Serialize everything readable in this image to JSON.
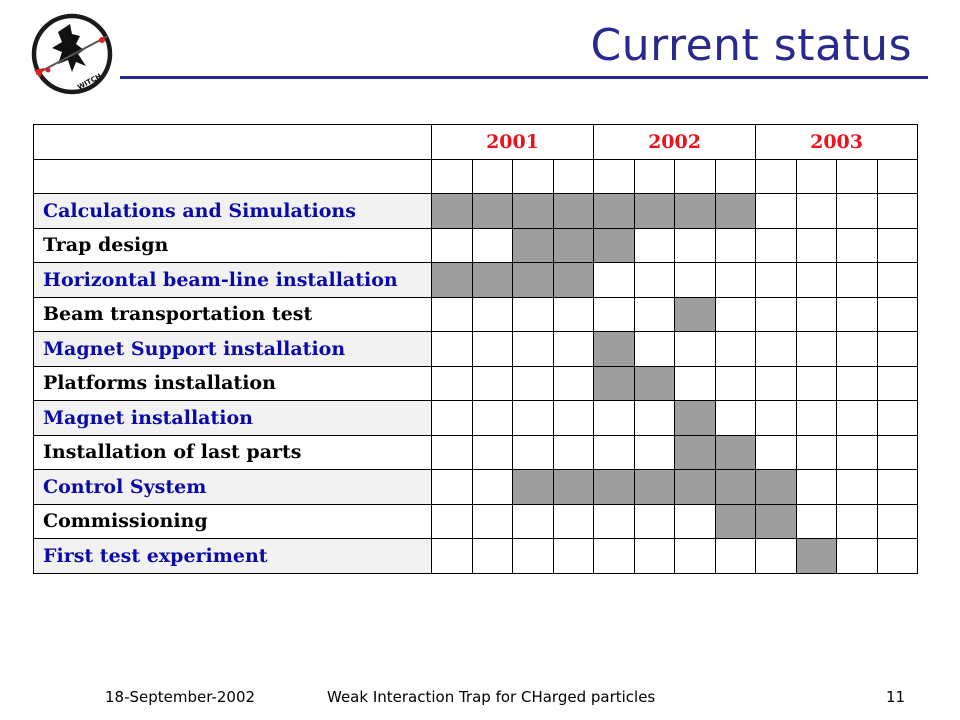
{
  "slide": {
    "title": "Current status",
    "logo_text": "WITCH"
  },
  "schedule": {
    "years": [
      "2001",
      "2002",
      "2003"
    ],
    "quarters_per_year": 4,
    "tasks": [
      {
        "label": "Calculations and Simulations",
        "filled": [
          1,
          1,
          1,
          1,
          1,
          1,
          1,
          1,
          0,
          0,
          0,
          0
        ]
      },
      {
        "label": "Trap design",
        "filled": [
          0,
          0,
          1,
          1,
          1,
          0,
          0,
          0,
          0,
          0,
          0,
          0
        ]
      },
      {
        "label": "Horizontal beam-line installation",
        "filled": [
          1,
          1,
          1,
          1,
          0,
          0,
          0,
          0,
          0,
          0,
          0,
          0
        ]
      },
      {
        "label": "Beam transportation test",
        "filled": [
          0,
          0,
          0,
          0,
          0,
          0,
          1,
          0,
          0,
          0,
          0,
          0
        ]
      },
      {
        "label": "Magnet Support installation",
        "filled": [
          0,
          0,
          0,
          0,
          1,
          0,
          0,
          0,
          0,
          0,
          0,
          0
        ]
      },
      {
        "label": "Platforms installation",
        "filled": [
          0,
          0,
          0,
          0,
          1,
          1,
          0,
          0,
          0,
          0,
          0,
          0
        ]
      },
      {
        "label": "Magnet installation",
        "filled": [
          0,
          0,
          0,
          0,
          0,
          0,
          1,
          0,
          0,
          0,
          0,
          0
        ]
      },
      {
        "label": "Installation of last parts",
        "filled": [
          0,
          0,
          0,
          0,
          0,
          0,
          1,
          1,
          0,
          0,
          0,
          0
        ]
      },
      {
        "label": "Control System",
        "filled": [
          0,
          0,
          1,
          1,
          1,
          1,
          1,
          1,
          1,
          0,
          0,
          0
        ]
      },
      {
        "label": "Commissioning",
        "filled": [
          0,
          0,
          0,
          0,
          0,
          0,
          0,
          1,
          1,
          0,
          0,
          0
        ]
      },
      {
        "label": "First test experiment",
        "filled": [
          0,
          0,
          0,
          0,
          0,
          0,
          0,
          0,
          0,
          1,
          0,
          0
        ]
      }
    ]
  },
  "footer": {
    "date": "18-September-2002",
    "center": "Weak Interaction Trap for CHarged particles",
    "page": "11"
  },
  "colors": {
    "title": "#2a2a8c",
    "year": "#e8141e",
    "task_alt": "#0a0aa8",
    "filled": "#9e9e9e"
  }
}
